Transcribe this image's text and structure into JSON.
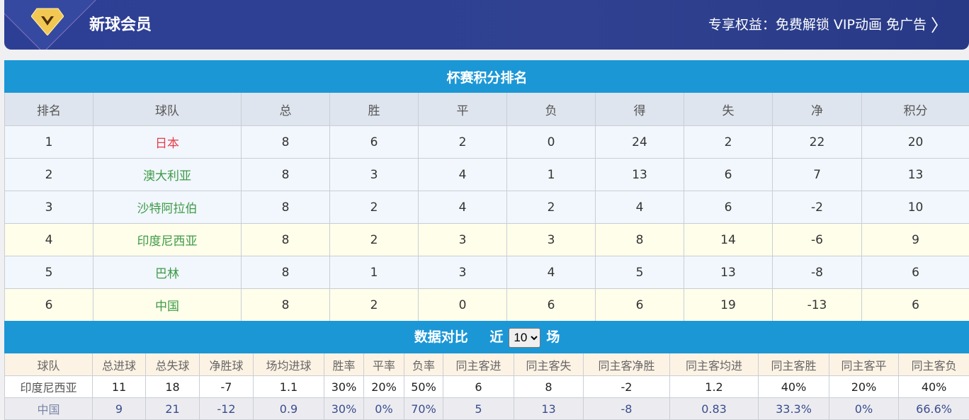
{
  "banner": {
    "title": "新球会员",
    "benefits": "专享权益：免费解锁 VIP动画 免广告",
    "icon": "vip-diamond-icon"
  },
  "standings": {
    "title": "杯赛积分排名",
    "headers": [
      "排名",
      "球队",
      "总",
      "胜",
      "平",
      "负",
      "得",
      "失",
      "净",
      "积分"
    ],
    "rows": [
      [
        "1",
        "日本",
        "8",
        "6",
        "2",
        "0",
        "24",
        "2",
        "22",
        "20"
      ],
      [
        "2",
        "澳大利亚",
        "8",
        "3",
        "4",
        "1",
        "13",
        "6",
        "7",
        "13"
      ],
      [
        "3",
        "沙特阿拉伯",
        "8",
        "2",
        "4",
        "2",
        "4",
        "6",
        "-2",
        "10"
      ],
      [
        "4",
        "印度尼西亚",
        "8",
        "2",
        "3",
        "3",
        "8",
        "14",
        "-6",
        "9"
      ],
      [
        "5",
        "巴林",
        "8",
        "1",
        "3",
        "4",
        "5",
        "13",
        "-8",
        "6"
      ],
      [
        "6",
        "中国",
        "8",
        "2",
        "0",
        "6",
        "6",
        "19",
        "-13",
        "6"
      ]
    ]
  },
  "compare": {
    "title": "数据对比",
    "recent_prefix": "近",
    "recent_value": "10",
    "recent_suffix": "场",
    "headers": [
      "球队",
      "总进球",
      "总失球",
      "净胜球",
      "场均进球",
      "胜率",
      "平率",
      "负率",
      "同主客进",
      "同主客失",
      "同主客净胜",
      "同主客均进",
      "同主客胜",
      "同主客平",
      "同主客负"
    ],
    "rows": [
      [
        "印度尼西亚",
        "11",
        "18",
        "-7",
        "1.1",
        "30%",
        "20%",
        "50%",
        "6",
        "8",
        "-2",
        "1.2",
        "40%",
        "20%",
        "40%"
      ],
      [
        "中国",
        "9",
        "21",
        "-12",
        "0.9",
        "30%",
        "0%",
        "70%",
        "5",
        "13",
        "-8",
        "0.83",
        "33.3%",
        "0%",
        "66.6%"
      ]
    ]
  },
  "colors": {
    "accent": "#1c97d6",
    "banner": "#2d3f95",
    "leader": "#e83c4a",
    "team": "#3e9a48"
  }
}
